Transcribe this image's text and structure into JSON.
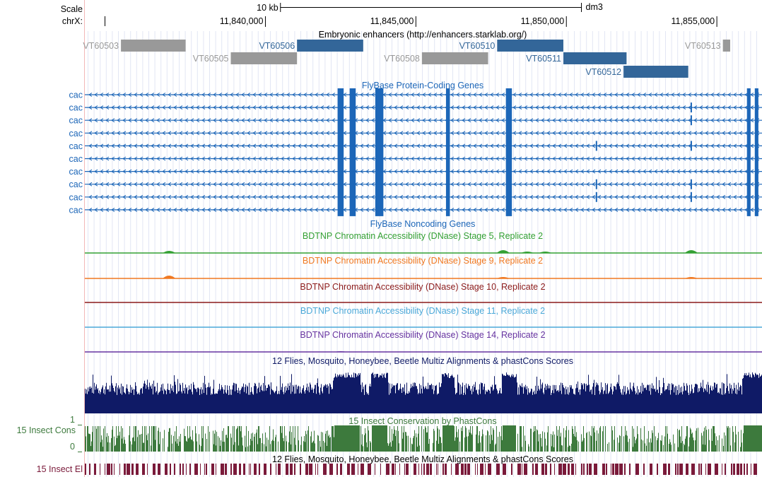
{
  "scale": {
    "label": "Scale",
    "bar_label": "10 kb",
    "assembly": "dm3",
    "bar_start": 11840500,
    "bar_end": 11850500
  },
  "ruler": {
    "chrom_label": "chrX:",
    "view_start": 11834000,
    "view_end": 11856500,
    "ticks": [
      {
        "pos": 11840000,
        "label": "11,840,000"
      },
      {
        "pos": 11845000,
        "label": "11,845,000"
      },
      {
        "pos": 11850000,
        "label": "11,850,000"
      },
      {
        "pos": 11855000,
        "label": "11,855,000"
      }
    ]
  },
  "enhancers": {
    "title": "Embryonic enhancers (http://enhancers.starklab.org/)",
    "color_active": "#336699",
    "color_inactive": "#999999",
    "items": [
      {
        "name": "VT60503",
        "start": 11835200,
        "end": 11837350,
        "row": 0,
        "active": false
      },
      {
        "name": "VT60505",
        "start": 11838850,
        "end": 11841050,
        "row": 1,
        "active": false
      },
      {
        "name": "VT60506",
        "start": 11841050,
        "end": 11843250,
        "row": 0,
        "active": true
      },
      {
        "name": "VT60508",
        "start": 11845200,
        "end": 11847400,
        "row": 1,
        "active": false
      },
      {
        "name": "VT60510",
        "start": 11847700,
        "end": 11849900,
        "row": 0,
        "active": true
      },
      {
        "name": "VT60511",
        "start": 11849900,
        "end": 11852000,
        "row": 1,
        "active": true
      },
      {
        "name": "VT60512",
        "start": 11851900,
        "end": 11854050,
        "row": 2,
        "active": true
      },
      {
        "name": "VT60513",
        "start": 11855200,
        "end": 11857350,
        "row": 0,
        "active": false
      }
    ]
  },
  "genes": {
    "title": "FlyBase Protein-Coding Genes",
    "color": "#1c66b8",
    "row_labels": [
      "cac",
      "cac",
      "cac",
      "cac",
      "cac",
      "cac",
      "cac",
      "cac",
      "cac",
      "cac"
    ],
    "exons": [
      {
        "start": 11842400,
        "end": 11842600
      },
      {
        "start": 11842800,
        "end": 11843000
      },
      {
        "start": 11843650,
        "end": 11843920
      },
      {
        "start": 11846000,
        "end": 11846130
      },
      {
        "start": 11847990,
        "end": 11848190
      },
      {
        "start": 11856000,
        "end": 11856120
      },
      {
        "start": 11856260,
        "end": 11856380
      },
      {
        "start": 11856520,
        "end": 11856640
      }
    ],
    "alt_exons": [
      {
        "pos": 11851000,
        "rows": [
          4,
          7,
          8
        ]
      },
      {
        "pos": 11854150,
        "rows": [
          1,
          2,
          4,
          7,
          8
        ]
      }
    ]
  },
  "noncoding": {
    "title": "FlyBase Noncoding Genes"
  },
  "dnase_tracks": [
    {
      "title": "BDTNP Chromatin Accessibility (DNase) Stage 5, Replicate 2",
      "color": "#33a033",
      "peaks": [
        {
          "pos": 11836800,
          "h": 3
        },
        {
          "pos": 11847900,
          "h": 4
        },
        {
          "pos": 11848700,
          "h": 2
        },
        {
          "pos": 11849300,
          "h": 2
        },
        {
          "pos": 11854150,
          "h": 4
        }
      ]
    },
    {
      "title": "BDTNP Chromatin Accessibility (DNase) Stage 9, Replicate 2",
      "color": "#f07820",
      "peaks": [
        {
          "pos": 11836800,
          "h": 4
        },
        {
          "pos": 11847900,
          "h": 2
        },
        {
          "pos": 11854150,
          "h": 2
        }
      ]
    },
    {
      "title": "BDTNP Chromatin Accessibility (DNase) Stage 10, Replicate 2",
      "color": "#8b1a1a",
      "peaks": []
    },
    {
      "title": "BDTNP Chromatin Accessibility (DNase) Stage 11, Replicate 2",
      "color": "#4aa8d8",
      "peaks": []
    },
    {
      "title": "BDTNP Chromatin Accessibility (DNase) Stage 14, Replicate 2",
      "color": "#6633a0",
      "peaks": [
        {
          "pos": 11842500,
          "h": 1
        }
      ]
    }
  ],
  "multiz": {
    "title": "12 Flies, Mosquito, Honeybee, Beetle Multiz Alignments & phastCons Scores",
    "color": "#0f1a66"
  },
  "insect_cons": {
    "label": "15 Insect Cons",
    "title": "15 Insect Conservation by PhastCons",
    "y_max_label": "1",
    "y_min_label": "0",
    "color": "#3d7a3d"
  },
  "insect_el": {
    "label": "15 Insect El",
    "title": "12 Flies, Mosquito, Honeybee, Beetle Multiz Alignments & phastCons Scores",
    "color": "#7a1a3a"
  }
}
